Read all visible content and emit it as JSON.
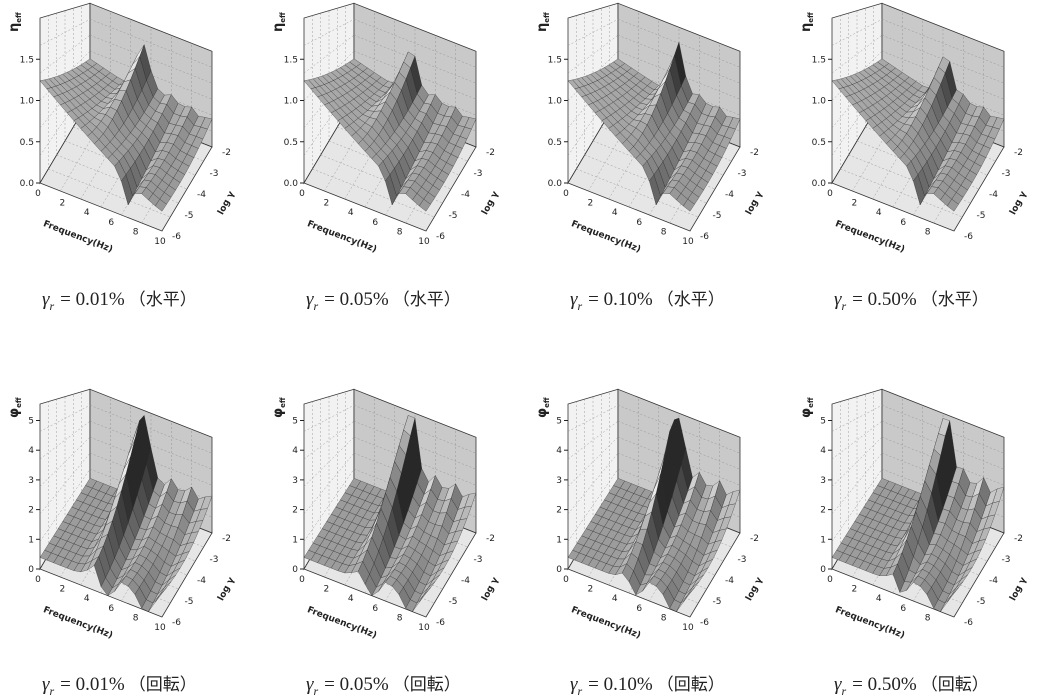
{
  "figure": {
    "rows": [
      {
        "y_label": "η",
        "y_label_sub": "eff",
        "z_ticks": [
          "0.0",
          "0.5",
          "1.0",
          "1.5"
        ],
        "panels": [
          {
            "freq_ticks": [
              "0",
              "2",
              "4",
              "6",
              "8",
              "10"
            ],
            "freq_label": "Frequency(Hz)",
            "gamma_ticks": [
              "-2",
              "-3",
              "-4",
              "-5",
              "-6"
            ],
            "gamma_label": "log γ",
            "caption": {
              "symbol": "γ",
              "sub": "r",
              "value": "= 0.01%",
              "note": "（水平）"
            }
          },
          {
            "freq_ticks": [
              "0",
              "2",
              "4",
              "6",
              "8",
              "10"
            ],
            "freq_label": "Frequency(Hz)",
            "gamma_ticks": [
              "-2",
              "-3",
              "-4",
              "-5",
              "-6"
            ],
            "gamma_label": "log γ",
            "caption": {
              "symbol": "γ",
              "sub": "r",
              "value": "= 0.05%",
              "note": "（水平）"
            }
          },
          {
            "freq_ticks": [
              "0",
              "2",
              "4",
              "6",
              "8",
              "10"
            ],
            "freq_label": "Frequency(Hz)",
            "gamma_ticks": [
              "-2",
              "-3",
              "-4",
              "-5",
              "-6"
            ],
            "gamma_label": "log γ",
            "caption": {
              "symbol": "γ",
              "sub": "r",
              "value": "= 0.10%",
              "note": "（水平）"
            }
          },
          {
            "freq_ticks": [
              "0",
              "2",
              "4",
              "6",
              "8"
            ],
            "freq_label": "Frequency(Hz)",
            "gamma_ticks": [
              "-2",
              "-3",
              "-4",
              "-5",
              "-6"
            ],
            "gamma_label": "log γ",
            "caption": {
              "symbol": "γ",
              "sub": "r",
              "value": "= 0.50%",
              "note": "（水平）"
            }
          }
        ]
      },
      {
        "y_label": "φ",
        "y_label_sub": "eff",
        "z_ticks": [
          "0",
          "1",
          "2",
          "3",
          "4",
          "5"
        ],
        "panels": [
          {
            "freq_ticks": [
              "0",
              "2",
              "4",
              "6",
              "8",
              "10"
            ],
            "freq_label": "Frequency(Hz)",
            "gamma_ticks": [
              "-2",
              "-3",
              "-4",
              "-5",
              "-6"
            ],
            "gamma_label": "log γ",
            "caption": {
              "symbol": "γ",
              "sub": "r",
              "value": "= 0.01%",
              "note": "（回転）"
            }
          },
          {
            "freq_ticks": [
              "0",
              "2",
              "4",
              "6",
              "8",
              "10"
            ],
            "freq_label": "Frequency(Hz)",
            "gamma_ticks": [
              "-2",
              "-3",
              "-4",
              "-5",
              "-6"
            ],
            "gamma_label": "log γ",
            "caption": {
              "symbol": "γ",
              "sub": "r",
              "value": "= 0.05%",
              "note": "（回転）"
            }
          },
          {
            "freq_ticks": [
              "0",
              "2",
              "4",
              "6",
              "8",
              "10"
            ],
            "freq_label": "Frequency(Hz)",
            "gamma_ticks": [
              "-2",
              "-3",
              "-4",
              "-5",
              "-6"
            ],
            "gamma_label": "log γ",
            "caption": {
              "symbol": "γ",
              "sub": "r",
              "value": "= 0.10%",
              "note": "（回転）"
            }
          },
          {
            "freq_ticks": [
              "0",
              "2",
              "4",
              "6",
              "8"
            ],
            "freq_label": "Frequency(Hz)",
            "gamma_ticks": [
              "-2",
              "-3",
              "-4",
              "-5",
              "-6"
            ],
            "gamma_label": "log γ",
            "caption": {
              "symbol": "γ",
              "sub": "r",
              "value": "= 0.50%",
              "note": "（回転）"
            }
          }
        ]
      }
    ]
  }
}
